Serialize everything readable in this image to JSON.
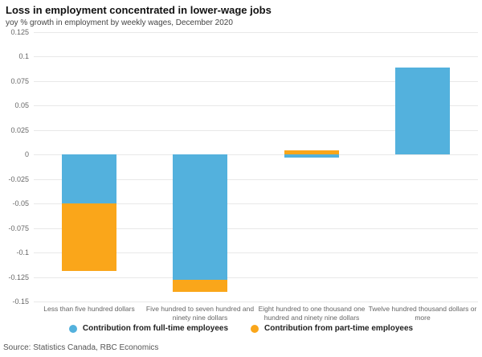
{
  "header": {
    "title": "Loss in employment concentrated in lower-wage jobs",
    "subtitle": "yoy % growth in employment by weekly wages, December 2020"
  },
  "chart_data": {
    "type": "bar",
    "stacked": true,
    "title": "Loss in employment concentrated in lower-wage jobs",
    "subtitle": "yoy % growth in employment by weekly wages, December 2020",
    "categories": [
      "Less than five hundred dollars",
      "Five hundred to seven hundred and ninety nine dollars",
      "Eight hundred to one thousand one hundred and ninety nine dollars",
      "Twelve hundred thousand dollars or more"
    ],
    "series": [
      {
        "key": "full-time",
        "name": "Contribution from full-time employees",
        "color": "#53b1dd",
        "values": [
          -0.05,
          -0.128,
          -0.003,
          0.089
        ]
      },
      {
        "key": "part-time",
        "name": "Contribution from part-time employees",
        "color": "#faa61a",
        "values": [
          -0.069,
          -0.012,
          0.004,
          0
        ]
      }
    ],
    "ylim": [
      -0.15,
      0.125
    ],
    "ytick_values": [
      0.125,
      0.1,
      0.075,
      0.05,
      0.025,
      0,
      -0.025,
      -0.05,
      -0.075,
      -0.1,
      -0.125,
      -0.15
    ],
    "ytick_labels": [
      "0.125",
      "0.1",
      "0.075",
      "0.05",
      "0.025",
      "0",
      "-0.025",
      "-0.05",
      "-0.075",
      "-0.1",
      "-0.125",
      "-0.15"
    ],
    "grid": "horizontal",
    "legend_position": "bottom",
    "grid_color": "#e8e8e8"
  },
  "footer": {
    "source": "Source: Statistics Canada, RBC Economics"
  }
}
